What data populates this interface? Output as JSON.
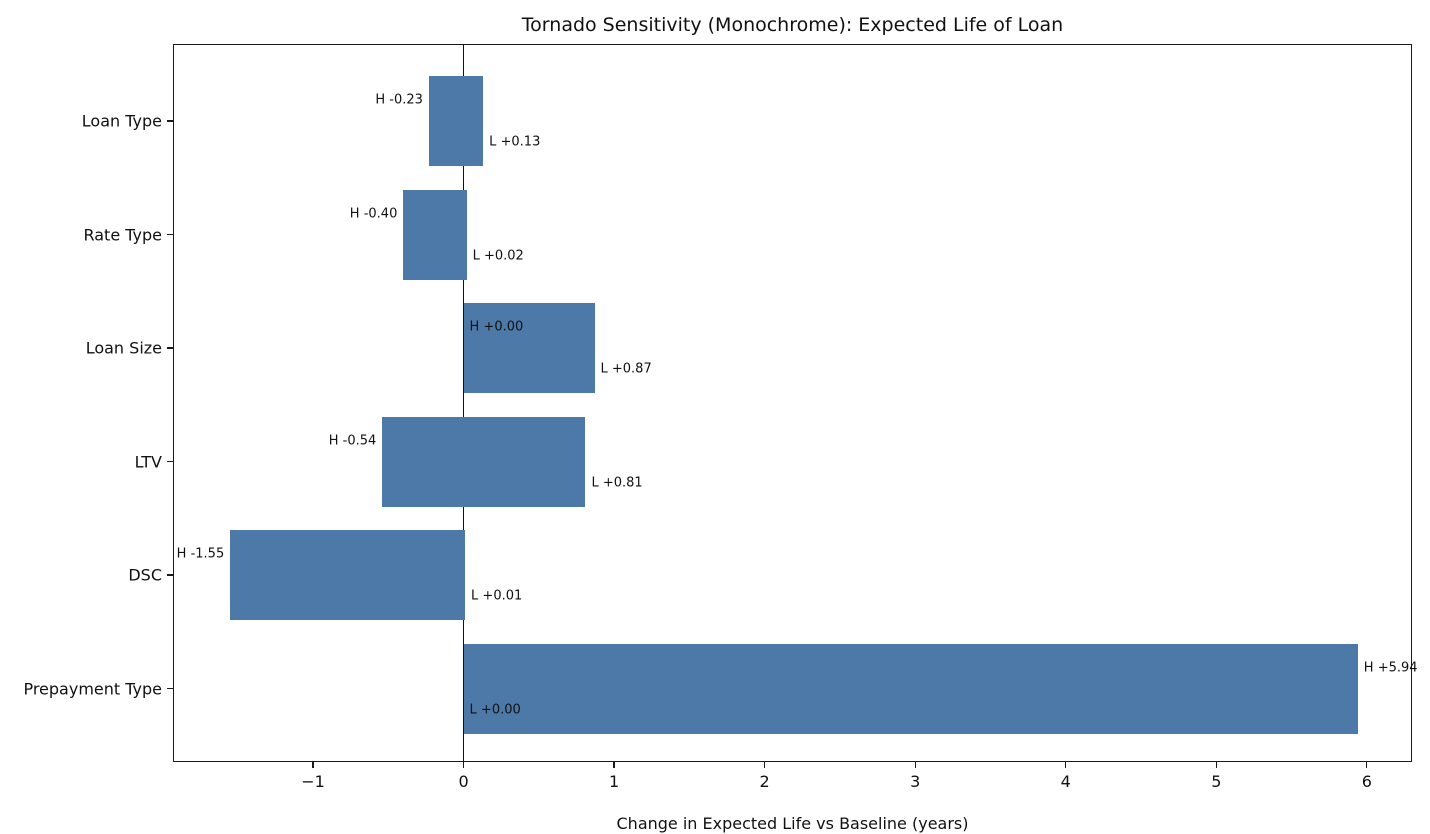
{
  "chart_data": {
    "type": "bar",
    "orientation": "horizontal",
    "title": "Tornado Sensitivity (Monochrome): Expected Life of Loan",
    "xlabel": "Change in Expected Life vs Baseline (years)",
    "categories": [
      "Loan Type",
      "Rate Type",
      "Loan Size",
      "LTV",
      "DSC",
      "Prepayment Type"
    ],
    "series": [
      {
        "name": "H",
        "values": [
          -0.23,
          -0.4,
          0.0,
          -0.54,
          -1.55,
          5.94
        ]
      },
      {
        "name": "L",
        "values": [
          0.13,
          0.02,
          0.87,
          0.81,
          0.01,
          0.0
        ]
      }
    ],
    "bar_labels": {
      "high": [
        "H -0.23",
        "H -0.40",
        "H +0.00",
        "H -0.54",
        "H -1.55",
        "H +5.94"
      ],
      "low": [
        "L +0.13",
        "L +0.02",
        "L +0.87",
        "L +0.81",
        "L +0.01",
        "L +0.00"
      ]
    },
    "xticks": [
      -1,
      0,
      1,
      2,
      3,
      4,
      5,
      6
    ],
    "xtick_labels": [
      "−1",
      "0",
      "1",
      "2",
      "3",
      "4",
      "5",
      "6"
    ],
    "xlim": [
      -1.93,
      6.3
    ],
    "bar_color": "#4d79a8",
    "zero_line": true,
    "grid": false,
    "legend": false,
    "text_color": "#111111"
  }
}
